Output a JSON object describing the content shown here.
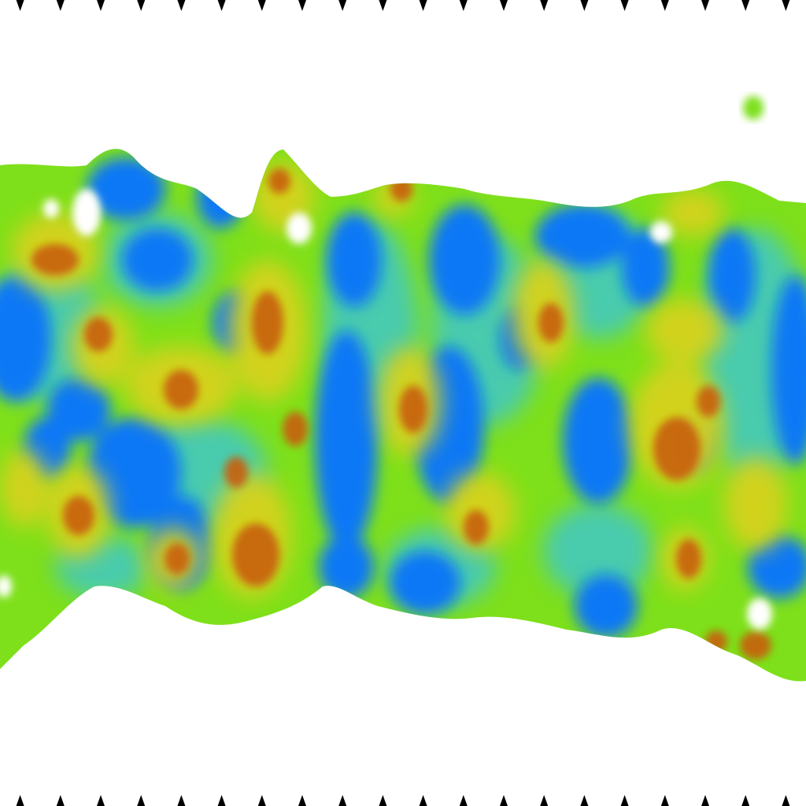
{
  "image": {
    "description_free": true,
    "colors": {
      "background": "#ffffff",
      "low": "#0a78f5",
      "mid_low": "#3fc8c8",
      "mid": "#7ee01a",
      "mid_high": "#d7d21b",
      "high": "#c85f10",
      "marker": "#000000"
    },
    "tick_marker_count_top": 20,
    "tick_marker_count_bottom": 20
  }
}
